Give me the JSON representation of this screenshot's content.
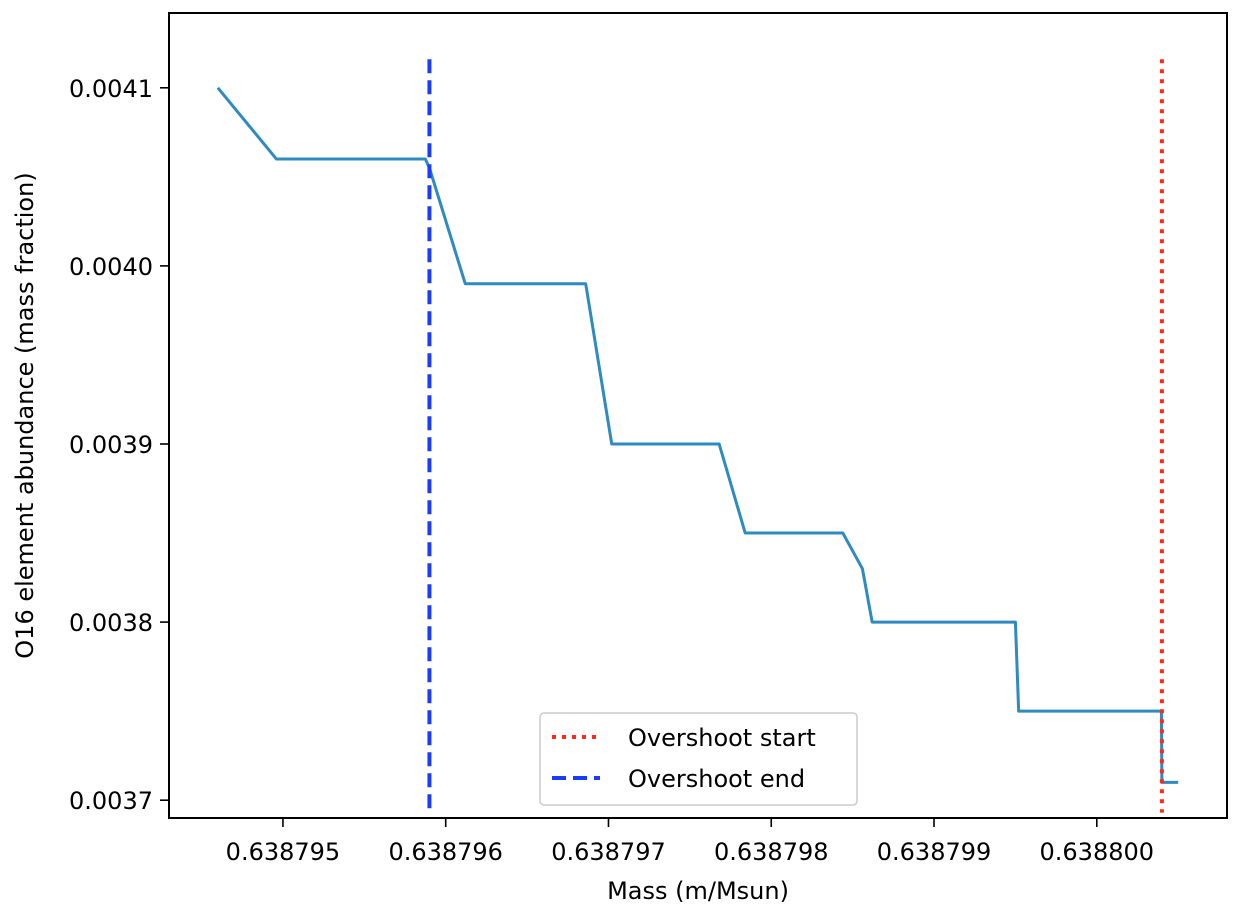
{
  "chart_data": {
    "type": "line",
    "xlabel": "Mass (m/Msun)",
    "ylabel": "O16 element abundance (mass fraction)",
    "xlim": [
      0.6387943,
      0.6388008
    ],
    "ylim": [
      0.00369,
      0.004142
    ],
    "x_ticks": [
      0.638795,
      0.638796,
      0.638797,
      0.638798,
      0.638799,
      0.6388
    ],
    "x_tick_labels": [
      "0.638795",
      "0.638796",
      "0.638797",
      "0.638798",
      "0.638799",
      "0.638800"
    ],
    "y_ticks": [
      0.0037,
      0.0038,
      0.0039,
      0.004,
      0.0041
    ],
    "y_tick_labels": [
      "0.0037",
      "0.0038",
      "0.0039",
      "0.0040",
      "0.0041"
    ],
    "grid": false,
    "legend_position": "bottom-center",
    "series": [
      {
        "name": "",
        "color": "#2e8bc0",
        "style": "solid",
        "x": [
          0.6387946,
          0.63879496,
          0.638795875,
          0.6387959,
          0.63879612,
          0.63879686,
          0.63879702,
          0.63879768,
          0.63879784,
          0.63879844,
          0.63879856,
          0.63879862,
          0.6387995,
          0.63879952,
          0.638800397,
          0.6388004,
          0.6388005
        ],
        "y": [
          0.0041,
          0.00406,
          0.00406,
          0.004055,
          0.00399,
          0.00399,
          0.0039,
          0.0039,
          0.00385,
          0.00385,
          0.00383,
          0.0038,
          0.0038,
          0.00375,
          0.00375,
          0.00371,
          0.00371
        ]
      }
    ],
    "reference_lines": [
      {
        "name": "Overshoot start",
        "x": 0.6388004,
        "color": "#ff2a1a",
        "style": "dotted",
        "y_range": [
          0.003693,
          0.004116
        ]
      },
      {
        "name": "Overshoot end",
        "x": 0.6387959,
        "color": "#1a3cff",
        "style": "dashed",
        "y_range": [
          0.003693,
          0.004116
        ]
      }
    ]
  }
}
